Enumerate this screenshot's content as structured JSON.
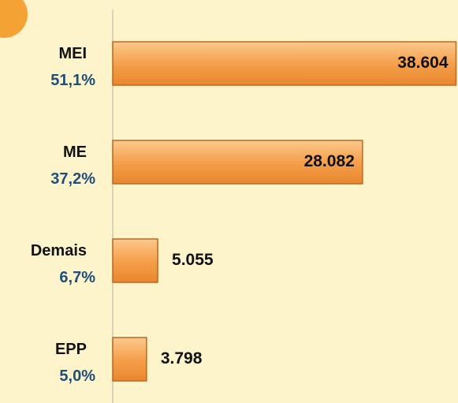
{
  "chart_data": {
    "type": "bar",
    "orientation": "horizontal",
    "categories": [
      "MEI",
      "ME",
      "Demais",
      "EPP"
    ],
    "share_labels": [
      "51,1%",
      "37,2%",
      "6,7%",
      "5,0%"
    ],
    "values": [
      38604,
      28082,
      5055,
      3798
    ],
    "value_labels": [
      "38.604",
      "28.082",
      "5.055",
      "3.798"
    ],
    "color": "#f5a04c",
    "xlim": [
      0,
      39000
    ]
  }
}
